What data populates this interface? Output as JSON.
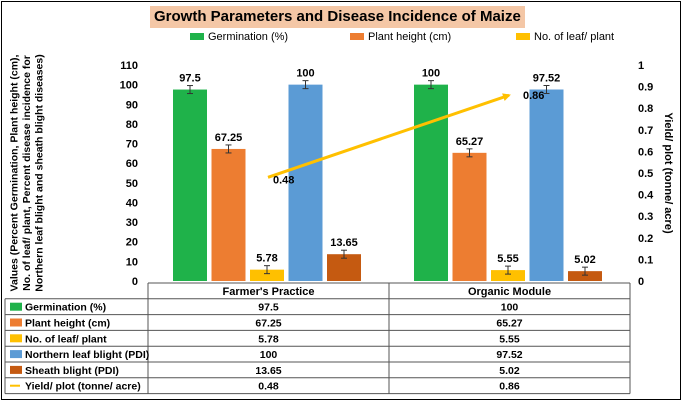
{
  "chart_data": {
    "type": "bar",
    "title": "Growth Parameters and Disease Incidence of Maize",
    "ylabel_left": "Values (Percent Germination, Plant height (cm), No. of leaf/ plant, Percent disease incidence for Northern leaf blight and sheath blight diseases)",
    "ylabel_right": "Yield/ plot (tonne/ acre)",
    "ylim_left": [
      0,
      110
    ],
    "yticks_left": [
      "0",
      "10",
      "20",
      "30",
      "40",
      "50",
      "60",
      "70",
      "80",
      "90",
      "100",
      "110"
    ],
    "ylim_right": [
      0,
      1
    ],
    "yticks_right": [
      "0",
      "0.1",
      "0.2",
      "0.3",
      "0.4",
      "0.5",
      "0.6",
      "0.7",
      "0.8",
      "0.9",
      "1"
    ],
    "categories": [
      "Farmer's Practice",
      "Organic Module"
    ],
    "series": [
      {
        "name": "Germination (%)",
        "color": "#1fb24a",
        "type": "bar",
        "axis": "left",
        "values": [
          97.5,
          100
        ],
        "labels": [
          "97.5",
          "100"
        ],
        "in_legend": true
      },
      {
        "name": "Plant height (cm)",
        "color": "#ed7d31",
        "type": "bar",
        "axis": "left",
        "values": [
          67.25,
          65.27
        ],
        "labels": [
          "67.25",
          "65.27"
        ],
        "in_legend": true
      },
      {
        "name": "No. of leaf/ plant",
        "color": "#ffc000",
        "type": "bar",
        "axis": "left",
        "values": [
          5.78,
          5.55
        ],
        "labels": [
          "5.78",
          "5.55"
        ],
        "in_legend": true
      },
      {
        "name": "Northern leaf blight (PDI)",
        "color": "#5b9bd5",
        "type": "bar",
        "axis": "left",
        "values": [
          100,
          97.52
        ],
        "labels": [
          "100",
          "97.52"
        ],
        "in_legend": false
      },
      {
        "name": "Sheath blight (PDI)",
        "color": "#c55a11",
        "type": "bar",
        "axis": "left",
        "values": [
          13.65,
          5.02
        ],
        "labels": [
          "13.65",
          "5.02"
        ],
        "in_legend": false
      },
      {
        "name": "Yield/ plot (tonne/ acre)",
        "color": "#ffc000",
        "type": "line",
        "axis": "right",
        "values": [
          0.48,
          0.86
        ],
        "labels": [
          "0.48",
          "0.86"
        ],
        "in_legend": false
      }
    ],
    "grid": false,
    "legend": "top"
  }
}
